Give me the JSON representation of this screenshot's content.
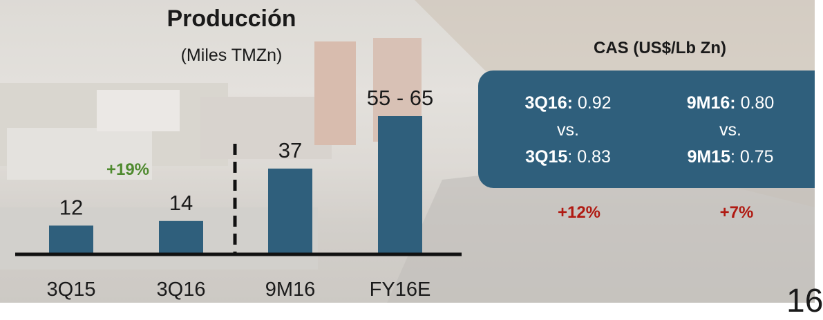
{
  "slide": {
    "page_number_fragment": "16",
    "colors": {
      "bar": "#2f5f7c",
      "growth": "#4f8a2f",
      "delta": "#b01a12",
      "panel": "#2f5f7c"
    }
  },
  "chart_data": {
    "type": "bar",
    "title": "Producción",
    "subtitle": "(Miles TMZn)",
    "categories": [
      "3Q15",
      "3Q16",
      "9M16",
      "FY16E"
    ],
    "values": [
      12,
      14,
      37,
      60
    ],
    "value_labels": [
      "12",
      "14",
      "37",
      "55 - 65"
    ],
    "range": {
      "category": "FY16E",
      "low": 55,
      "high": 65
    },
    "annotation": "+19%",
    "divider": "between 3Q16 and 9M16",
    "ylim": [
      0,
      65
    ],
    "grid": false
  },
  "cas": {
    "title": "CAS (US$/Lb Zn)",
    "columns": [
      {
        "current_label": "3Q16:",
        "current_value": "0.92",
        "vs": "vs.",
        "prior_label": "3Q15",
        "prior_value": ": 0.83",
        "delta": "+12%"
      },
      {
        "current_label": "9M16:",
        "current_value": "0.80",
        "vs": "vs.",
        "prior_label": "9M15",
        "prior_value": ": 0.75",
        "delta": "+7%"
      }
    ]
  }
}
